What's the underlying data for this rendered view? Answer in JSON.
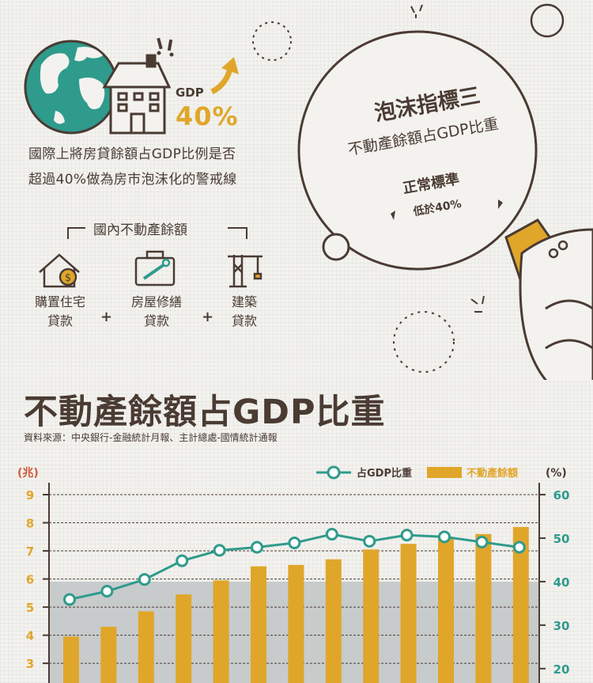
{
  "header": {
    "gdp_label": "GDP",
    "gdp_value": "40%",
    "intro_line1": "國際上將房貸餘額占GDP比例是否",
    "intro_line2": "超過40%做為房市泡沫化的警戒線"
  },
  "domestic": {
    "title": "國內不動產餘額",
    "items": [
      {
        "line1": "購置住宅",
        "line2": "貸款",
        "icon": "house-loan-icon"
      },
      {
        "line1": "房屋修繕",
        "line2": "貸款",
        "icon": "toolbox-wrench-icon"
      },
      {
        "line1": "建築",
        "line2": "貸款",
        "icon": "crane-icon"
      }
    ],
    "plus": "+"
  },
  "bubble": {
    "title": "泡沫指標三",
    "subtitle": "不動產餘額占GDP比重",
    "standard_label": "正常標準",
    "standard_value": "低於40%"
  },
  "colors": {
    "teal": "#2f9b8d",
    "gold": "#e0a62a",
    "brown": "#4a3b33",
    "gray_zone": "#c7cbcc",
    "axis_red": "#cf5a3a"
  },
  "chart_data": {
    "type": "bar",
    "title": "不動產餘額占GDP比重",
    "source": "資料來源：中央銀行-金融統計月報、主計總處-國情統計通報",
    "left_unit": "(兆)",
    "right_unit": "(%)",
    "legend": {
      "line": "占GDP比重",
      "bar": "不動產餘額",
      "placement": "top-right"
    },
    "y_left": {
      "ticks": [
        9,
        8,
        7,
        6,
        5,
        4,
        3
      ],
      "range": [
        2.3,
        9
      ]
    },
    "y_right": {
      "ticks": [
        60,
        50,
        40,
        30,
        20
      ],
      "range": [
        16.7,
        60
      ]
    },
    "threshold_pct": 40,
    "grid": true,
    "series": [
      {
        "name": "不動產餘額",
        "type": "bar",
        "axis": "left",
        "values": [
          3.95,
          4.3,
          4.85,
          5.45,
          5.95,
          6.45,
          6.5,
          6.7,
          7.05,
          7.25,
          7.45,
          7.6,
          7.85
        ]
      },
      {
        "name": "占GDP比重",
        "type": "line",
        "axis": "right",
        "values": [
          35.9,
          37.8,
          40.5,
          44.8,
          47.2,
          47.9,
          48.9,
          50.9,
          49.3,
          50.7,
          50.3,
          49.1,
          47.9
        ]
      }
    ]
  }
}
